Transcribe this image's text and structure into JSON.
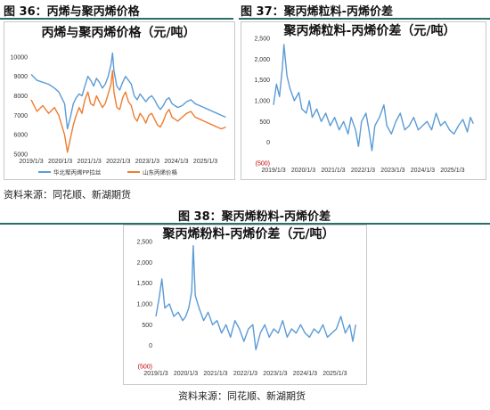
{
  "figures": [
    {
      "label": "图 36：丙烯与聚丙烯价格"
    },
    {
      "label": "图 37：聚丙烯粒料-丙烯价差"
    },
    {
      "label": "图 38：聚丙烯粉料-丙烯价差"
    }
  ],
  "sources": {
    "left": "资料来源：同花顺、新湖期货",
    "bottom": "资料来源：同花顺、新湖期货"
  },
  "colors": {
    "blue": "#5b9bd5",
    "orange": "#ed7d31",
    "negative_tick": "#c00000",
    "title_rule": "#2a6f6a"
  },
  "chart_data": [
    {
      "type": "line",
      "title": "丙烯与聚丙烯价格（元/吨）",
      "xticks": [
        "2019/1/3",
        "2020/1/3",
        "2021/1/3",
        "2022/1/3",
        "2023/1/3",
        "2024/1/3",
        "2025/1/3"
      ],
      "yticks": [
        "5000",
        "6000",
        "7000",
        "8000",
        "9000",
        "10000"
      ],
      "ylim": [
        5000,
        10500
      ],
      "x_range": [
        2019.0,
        2025.75
      ],
      "legend": "bottom",
      "series": [
        {
          "name": "华北聚丙烯PP拉丝",
          "color": "#5b9bd5",
          "points": [
            [
              2019.0,
              9100
            ],
            [
              2019.2,
              8800
            ],
            [
              2019.4,
              8700
            ],
            [
              2019.6,
              8600
            ],
            [
              2019.8,
              8400
            ],
            [
              2019.95,
              8200
            ],
            [
              2020.05,
              7900
            ],
            [
              2020.15,
              7600
            ],
            [
              2020.25,
              6300
            ],
            [
              2020.35,
              6900
            ],
            [
              2020.45,
              7600
            ],
            [
              2020.55,
              7900
            ],
            [
              2020.65,
              8100
            ],
            [
              2020.75,
              8000
            ],
            [
              2020.85,
              8500
            ],
            [
              2020.95,
              9000
            ],
            [
              2021.05,
              8800
            ],
            [
              2021.15,
              8500
            ],
            [
              2021.25,
              8900
            ],
            [
              2021.35,
              8700
            ],
            [
              2021.45,
              8400
            ],
            [
              2021.55,
              8600
            ],
            [
              2021.65,
              9000
            ],
            [
              2021.75,
              9600
            ],
            [
              2021.8,
              10200
            ],
            [
              2021.85,
              9300
            ],
            [
              2021.95,
              8500
            ],
            [
              2022.05,
              8300
            ],
            [
              2022.15,
              8700
            ],
            [
              2022.25,
              9000
            ],
            [
              2022.35,
              8800
            ],
            [
              2022.45,
              8600
            ],
            [
              2022.55,
              8000
            ],
            [
              2022.65,
              7800
            ],
            [
              2022.75,
              8100
            ],
            [
              2022.85,
              7900
            ],
            [
              2022.95,
              7700
            ],
            [
              2023.05,
              7900
            ],
            [
              2023.15,
              8000
            ],
            [
              2023.25,
              7800
            ],
            [
              2023.35,
              7500
            ],
            [
              2023.45,
              7300
            ],
            [
              2023.55,
              7500
            ],
            [
              2023.65,
              7800
            ],
            [
              2023.75,
              7900
            ],
            [
              2023.85,
              7600
            ],
            [
              2023.95,
              7500
            ],
            [
              2024.05,
              7400
            ],
            [
              2024.2,
              7500
            ],
            [
              2024.35,
              7700
            ],
            [
              2024.5,
              7800
            ],
            [
              2024.65,
              7600
            ],
            [
              2024.8,
              7500
            ],
            [
              2024.95,
              7400
            ],
            [
              2025.1,
              7300
            ],
            [
              2025.25,
              7200
            ],
            [
              2025.4,
              7100
            ],
            [
              2025.55,
              7000
            ],
            [
              2025.7,
              6900
            ]
          ]
        },
        {
          "name": "山东丙烯价格",
          "color": "#ed7d31",
          "points": [
            [
              2019.0,
              7800
            ],
            [
              2019.2,
              7200
            ],
            [
              2019.4,
              7500
            ],
            [
              2019.6,
              7100
            ],
            [
              2019.8,
              7400
            ],
            [
              2019.95,
              7000
            ],
            [
              2020.05,
              6500
            ],
            [
              2020.15,
              6000
            ],
            [
              2020.25,
              5100
            ],
            [
              2020.35,
              5800
            ],
            [
              2020.45,
              6500
            ],
            [
              2020.55,
              7000
            ],
            [
              2020.65,
              7400
            ],
            [
              2020.75,
              7100
            ],
            [
              2020.85,
              7800
            ],
            [
              2020.95,
              8200
            ],
            [
              2021.05,
              7600
            ],
            [
              2021.15,
              7500
            ],
            [
              2021.25,
              8000
            ],
            [
              2021.35,
              7700
            ],
            [
              2021.45,
              7400
            ],
            [
              2021.55,
              7600
            ],
            [
              2021.65,
              8100
            ],
            [
              2021.75,
              8600
            ],
            [
              2021.8,
              9300
            ],
            [
              2021.85,
              8200
            ],
            [
              2021.95,
              7400
            ],
            [
              2022.05,
              7300
            ],
            [
              2022.15,
              7900
            ],
            [
              2022.25,
              8200
            ],
            [
              2022.35,
              7700
            ],
            [
              2022.45,
              7500
            ],
            [
              2022.55,
              6900
            ],
            [
              2022.65,
              6700
            ],
            [
              2022.75,
              7100
            ],
            [
              2022.85,
              6900
            ],
            [
              2022.95,
              6600
            ],
            [
              2023.05,
              7000
            ],
            [
              2023.15,
              7100
            ],
            [
              2023.25,
              6800
            ],
            [
              2023.35,
              6500
            ],
            [
              2023.45,
              6400
            ],
            [
              2023.55,
              6700
            ],
            [
              2023.65,
              7100
            ],
            [
              2023.75,
              7300
            ],
            [
              2023.85,
              6900
            ],
            [
              2023.95,
              6800
            ],
            [
              2024.05,
              6700
            ],
            [
              2024.2,
              6900
            ],
            [
              2024.35,
              7100
            ],
            [
              2024.5,
              7200
            ],
            [
              2024.65,
              6900
            ],
            [
              2024.8,
              6800
            ],
            [
              2024.95,
              6700
            ],
            [
              2025.1,
              6600
            ],
            [
              2025.25,
              6500
            ],
            [
              2025.4,
              6400
            ],
            [
              2025.55,
              6300
            ],
            [
              2025.7,
              6400
            ]
          ]
        }
      ]
    },
    {
      "type": "line",
      "title": "聚丙烯粒料-丙烯价差（元/吨）",
      "xticks": [
        "2019/1/3",
        "2020/1/3",
        "2021/1/3",
        "2022/1/3",
        "2023/1/3",
        "2024/1/3",
        "2025/1/3"
      ],
      "yticks": [
        "(500)",
        "0",
        "500",
        "1,000",
        "1,500",
        "2,000",
        "2,500"
      ],
      "ylim": [
        -500,
        2500
      ],
      "x_range": [
        2019.0,
        2025.75
      ],
      "series": [
        {
          "name": "",
          "color": "#5b9bd5",
          "points": [
            [
              2019.0,
              900
            ],
            [
              2019.1,
              1400
            ],
            [
              2019.2,
              1100
            ],
            [
              2019.3,
              1800
            ],
            [
              2019.35,
              2350
            ],
            [
              2019.45,
              1600
            ],
            [
              2019.55,
              1300
            ],
            [
              2019.7,
              1000
            ],
            [
              2019.85,
              1200
            ],
            [
              2019.95,
              800
            ],
            [
              2020.1,
              700
            ],
            [
              2020.2,
              1000
            ],
            [
              2020.3,
              600
            ],
            [
              2020.45,
              800
            ],
            [
              2020.6,
              500
            ],
            [
              2020.75,
              700
            ],
            [
              2020.9,
              400
            ],
            [
              2021.05,
              600
            ],
            [
              2021.2,
              300
            ],
            [
              2021.35,
              500
            ],
            [
              2021.5,
              200
            ],
            [
              2021.6,
              600
            ],
            [
              2021.75,
              300
            ],
            [
              2021.85,
              -100
            ],
            [
              2021.95,
              500
            ],
            [
              2022.1,
              700
            ],
            [
              2022.2,
              300
            ],
            [
              2022.3,
              -200
            ],
            [
              2022.4,
              400
            ],
            [
              2022.55,
              600
            ],
            [
              2022.7,
              900
            ],
            [
              2022.8,
              400
            ],
            [
              2022.95,
              200
            ],
            [
              2023.1,
              500
            ],
            [
              2023.25,
              700
            ],
            [
              2023.4,
              300
            ],
            [
              2023.55,
              400
            ],
            [
              2023.7,
              600
            ],
            [
              2023.85,
              300
            ],
            [
              2024.0,
              400
            ],
            [
              2024.15,
              500
            ],
            [
              2024.3,
              300
            ],
            [
              2024.45,
              700
            ],
            [
              2024.6,
              400
            ],
            [
              2024.75,
              500
            ],
            [
              2024.9,
              300
            ],
            [
              2025.05,
              200
            ],
            [
              2025.2,
              400
            ],
            [
              2025.35,
              550
            ],
            [
              2025.5,
              250
            ],
            [
              2025.6,
              600
            ],
            [
              2025.7,
              450
            ]
          ]
        }
      ]
    },
    {
      "type": "line",
      "title": "聚丙烯粉料-丙烯价差（元/吨）",
      "xticks": [
        "2019/1/3",
        "2020/1/3",
        "2021/1/3",
        "2022/1/3",
        "2023/1/3",
        "2024/1/3",
        "2025/1/3"
      ],
      "yticks": [
        "(500)",
        "0",
        "500",
        "1,000",
        "1,500",
        "2,000",
        "2,500"
      ],
      "ylim": [
        -500,
        2500
      ],
      "x_range": [
        2019.0,
        2025.75
      ],
      "series": [
        {
          "name": "",
          "color": "#5b9bd5",
          "points": [
            [
              2019.0,
              700
            ],
            [
              2019.1,
              1100
            ],
            [
              2019.2,
              1600
            ],
            [
              2019.3,
              900
            ],
            [
              2019.45,
              1000
            ],
            [
              2019.6,
              700
            ],
            [
              2019.75,
              800
            ],
            [
              2019.9,
              600
            ],
            [
              2020.0,
              700
            ],
            [
              2020.1,
              900
            ],
            [
              2020.2,
              1300
            ],
            [
              2020.25,
              2400
            ],
            [
              2020.32,
              1200
            ],
            [
              2020.45,
              900
            ],
            [
              2020.6,
              600
            ],
            [
              2020.75,
              800
            ],
            [
              2020.9,
              500
            ],
            [
              2021.05,
              600
            ],
            [
              2021.2,
              300
            ],
            [
              2021.35,
              500
            ],
            [
              2021.5,
              200
            ],
            [
              2021.65,
              600
            ],
            [
              2021.8,
              400
            ],
            [
              2021.95,
              100
            ],
            [
              2022.1,
              400
            ],
            [
              2022.25,
              500
            ],
            [
              2022.35,
              -100
            ],
            [
              2022.5,
              300
            ],
            [
              2022.65,
              500
            ],
            [
              2022.8,
              200
            ],
            [
              2022.95,
              400
            ],
            [
              2023.1,
              300
            ],
            [
              2023.25,
              600
            ],
            [
              2023.4,
              200
            ],
            [
              2023.55,
              400
            ],
            [
              2023.7,
              300
            ],
            [
              2023.85,
              500
            ],
            [
              2024.0,
              300
            ],
            [
              2024.15,
              200
            ],
            [
              2024.3,
              400
            ],
            [
              2024.45,
              300
            ],
            [
              2024.6,
              500
            ],
            [
              2024.75,
              200
            ],
            [
              2024.9,
              300
            ],
            [
              2025.05,
              400
            ],
            [
              2025.2,
              700
            ],
            [
              2025.35,
              300
            ],
            [
              2025.5,
              500
            ],
            [
              2025.6,
              100
            ],
            [
              2025.7,
              500
            ]
          ]
        }
      ]
    }
  ]
}
